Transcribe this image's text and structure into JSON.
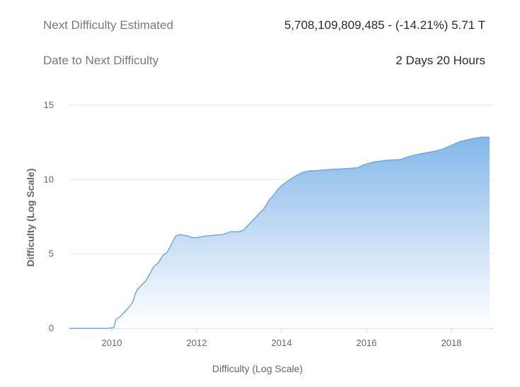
{
  "stats": {
    "next_difficulty_label": "Next Difficulty Estimated",
    "next_difficulty_value": "5,708,109,809,485 - (-14.21%) 5.71 T",
    "date_label": "Date to Next Difficulty",
    "date_value": "2 Days 20 Hours"
  },
  "chart_data": {
    "type": "area",
    "title": "",
    "xlabel": "Difficulty (Log Scale)",
    "ylabel": "Difficulty (Log Scale)",
    "xlim": [
      2009.0,
      2019.0
    ],
    "ylim": [
      0,
      15
    ],
    "x_ticks": [
      2010,
      2012,
      2014,
      2016,
      2018
    ],
    "y_ticks": [
      0,
      5,
      10,
      15
    ],
    "grid": "horizontal",
    "legend": "none",
    "colors": {
      "fill_top": "#7eb3e8",
      "fill_bottom": "#ffffff",
      "line": "#6fa8e3",
      "grid": "#e6e6e6",
      "axis": "#c0d0e0"
    },
    "series": [
      {
        "x": [
          2009.0,
          2009.9,
          2010.05,
          2010.1,
          2010.2,
          2010.3,
          2010.4,
          2010.5,
          2010.55,
          2010.6,
          2010.7,
          2010.8,
          2010.9,
          2011.0,
          2011.1,
          2011.2,
          2011.3,
          2011.4,
          2011.5,
          2011.6,
          2011.7,
          2011.8,
          2011.9,
          2012.0,
          2012.2,
          2012.4,
          2012.6,
          2012.8,
          2013.0,
          2013.1,
          2013.2,
          2013.3,
          2013.4,
          2013.5,
          2013.6,
          2013.7,
          2013.8,
          2013.9,
          2014.0,
          2014.1,
          2014.2,
          2014.3,
          2014.4,
          2014.5,
          2014.6,
          2014.7,
          2014.8,
          2015.0,
          2015.2,
          2015.4,
          2015.6,
          2015.8,
          2015.9,
          2016.0,
          2016.2,
          2016.5,
          2016.8,
          2017.0,
          2017.3,
          2017.6,
          2017.8,
          2018.0,
          2018.2,
          2018.5,
          2018.7,
          2018.9
        ],
        "y": [
          0,
          0,
          0.05,
          0.6,
          0.8,
          1.1,
          1.4,
          1.8,
          2.3,
          2.6,
          2.9,
          3.2,
          3.7,
          4.2,
          4.4,
          4.9,
          5.1,
          5.6,
          6.2,
          6.3,
          6.25,
          6.2,
          6.1,
          6.1,
          6.2,
          6.25,
          6.3,
          6.5,
          6.5,
          6.6,
          6.9,
          7.2,
          7.5,
          7.8,
          8.1,
          8.6,
          8.9,
          9.3,
          9.6,
          9.8,
          10.0,
          10.2,
          10.35,
          10.5,
          10.55,
          10.6,
          10.6,
          10.65,
          10.7,
          10.72,
          10.75,
          10.8,
          10.95,
          11.05,
          11.2,
          11.3,
          11.35,
          11.55,
          11.75,
          11.9,
          12.05,
          12.3,
          12.55,
          12.75,
          12.85,
          12.85
        ]
      }
    ]
  }
}
